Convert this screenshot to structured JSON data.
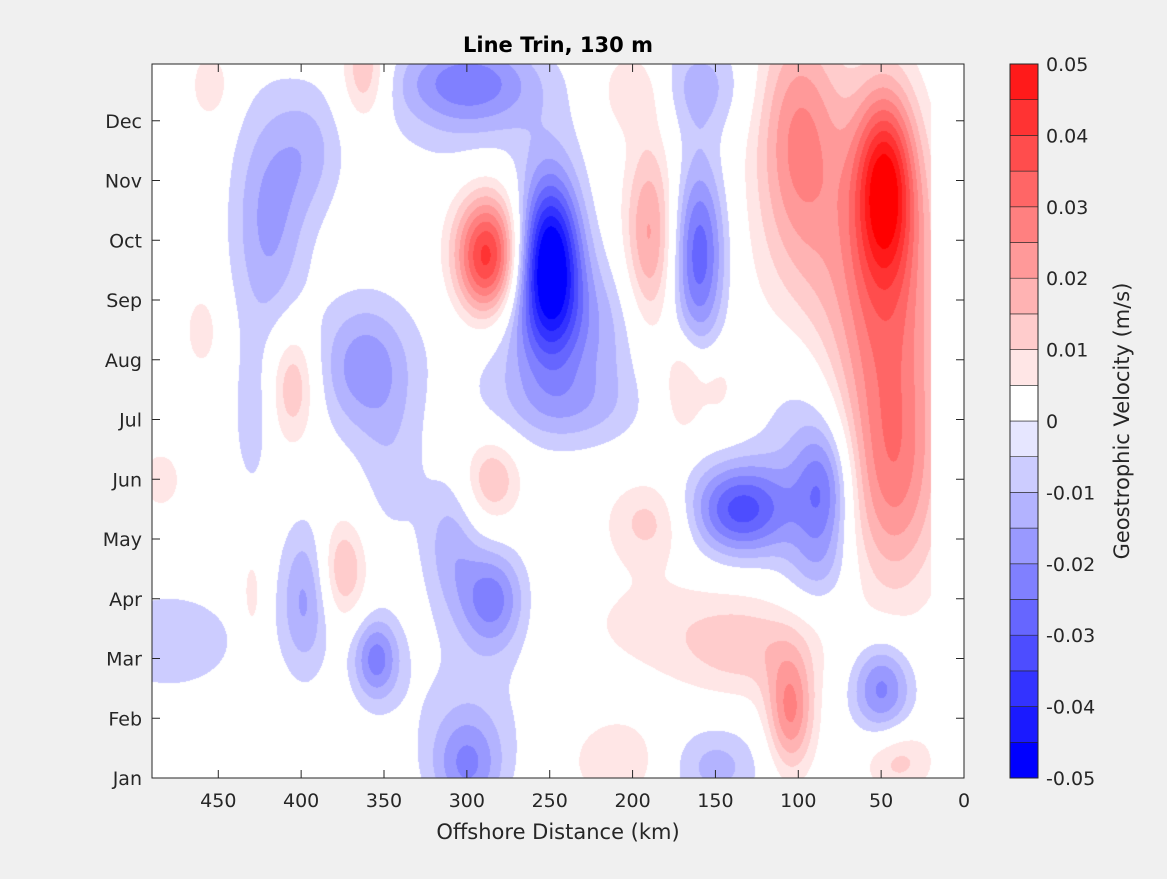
{
  "chart_data": {
    "type": "heatmap",
    "subtype": "filled-contour",
    "title": "Line Trin, 130 m",
    "xlabel": "Offshore Distance (km)",
    "ylabel": "",
    "x_reversed": true,
    "xlim": [
      490,
      0
    ],
    "x_ticks": [
      450,
      400,
      350,
      300,
      250,
      200,
      150,
      100,
      50,
      0
    ],
    "x_tick_labels": [
      "450",
      "400",
      "350",
      "300",
      "250",
      "200",
      "150",
      "100",
      "50",
      "0"
    ],
    "ylim": [
      1,
      12.95
    ],
    "y_ticks": [
      1,
      2,
      3,
      4,
      5,
      6,
      7,
      8,
      9,
      10,
      11,
      12
    ],
    "y_tick_labels": [
      "Jan",
      "Feb",
      "Mar",
      "Apr",
      "May",
      "Jun",
      "Jul",
      "Aug",
      "Sep",
      "Oct",
      "Nov",
      "Dec"
    ],
    "data_x_range": [
      20,
      490
    ],
    "colorbar": {
      "label": "Geostrophic Velocity (m/s)",
      "limits": [
        -0.05,
        0.05
      ],
      "ticks": [
        0.05,
        0.04,
        0.03,
        0.02,
        0.01,
        0,
        -0.01,
        -0.02,
        -0.03,
        -0.04,
        -0.05
      ],
      "tick_labels": [
        "0.05",
        "0.04",
        "0.03",
        "0.02",
        "0.01",
        "0",
        "-0.01",
        "-0.02",
        "-0.03",
        "-0.04",
        "-0.05"
      ],
      "levels": [
        -0.05,
        -0.045,
        -0.04,
        -0.035,
        -0.03,
        -0.025,
        -0.02,
        -0.015,
        -0.01,
        -0.005,
        0,
        0.005,
        0.01,
        0.015,
        0.02,
        0.025,
        0.03,
        0.035,
        0.04,
        0.045,
        0.05
      ],
      "colors": [
        "#0000ff",
        "#1a1aff",
        "#3333ff",
        "#4d4dff",
        "#6666ff",
        "#8080ff",
        "#9999ff",
        "#b3b3ff",
        "#ccccff",
        "#e6e6ff",
        "#ffffff",
        "#ffffff",
        "#ffe6e6",
        "#ffcccc",
        "#ffb3b3",
        "#ff9999",
        "#ff8080",
        "#ff6666",
        "#ff4d4d",
        "#ff3333",
        "#ff1a1a",
        "#ff0000"
      ]
    },
    "features": [
      {
        "x": 288,
        "y": 9.7,
        "peak": 0.045,
        "sx": 14,
        "sy": 0.75
      },
      {
        "x": 250,
        "y": 9.7,
        "peak": -0.05,
        "sx": 13,
        "sy": 1.0
      },
      {
        "x": 244,
        "y": 8.5,
        "peak": -0.016,
        "sx": 38,
        "sy": 0.9
      },
      {
        "x": 240,
        "y": 7.2,
        "peak": -0.01,
        "sx": 30,
        "sy": 0.5
      },
      {
        "x": 190,
        "y": 10.0,
        "peak": 0.022,
        "sx": 11,
        "sy": 1.2
      },
      {
        "x": 160,
        "y": 9.8,
        "peak": -0.028,
        "sx": 11,
        "sy": 1.1
      },
      {
        "x": 48,
        "y": 11.0,
        "peak": 0.04,
        "sx": 13,
        "sy": 1.1
      },
      {
        "x": 44,
        "y": 9.0,
        "peak": 0.022,
        "sx": 22,
        "sy": 1.8
      },
      {
        "x": 42,
        "y": 6.0,
        "peak": 0.022,
        "sx": 20,
        "sy": 1.4
      },
      {
        "x": 100,
        "y": 11.8,
        "peak": 0.022,
        "sx": 18,
        "sy": 1.4
      },
      {
        "x": 80,
        "y": 9.5,
        "peak": 0.012,
        "sx": 30,
        "sy": 2.0
      },
      {
        "x": 135,
        "y": 5.5,
        "peak": -0.032,
        "sx": 22,
        "sy": 0.55
      },
      {
        "x": 85,
        "y": 5.8,
        "peak": -0.022,
        "sx": 12,
        "sy": 0.8
      },
      {
        "x": 100,
        "y": 7.0,
        "peak": -0.01,
        "sx": 20,
        "sy": 1.2
      },
      {
        "x": 50,
        "y": 2.5,
        "peak": -0.022,
        "sx": 13,
        "sy": 0.55
      },
      {
        "x": 105,
        "y": 2.1,
        "peak": 0.025,
        "sx": 10,
        "sy": 0.7
      },
      {
        "x": 130,
        "y": 3.2,
        "peak": 0.012,
        "sx": 30,
        "sy": 0.6
      },
      {
        "x": 190,
        "y": 3.6,
        "peak": 0.006,
        "sx": 40,
        "sy": 0.7
      },
      {
        "x": 190,
        "y": 5.3,
        "peak": 0.012,
        "sx": 18,
        "sy": 0.5
      },
      {
        "x": 210,
        "y": 1.3,
        "peak": 0.01,
        "sx": 20,
        "sy": 0.5
      },
      {
        "x": 40,
        "y": 1.3,
        "peak": 0.012,
        "sx": 15,
        "sy": 0.4
      },
      {
        "x": 150,
        "y": 1.2,
        "peak": -0.012,
        "sx": 20,
        "sy": 0.5
      },
      {
        "x": 300,
        "y": 1.2,
        "peak": -0.018,
        "sx": 15,
        "sy": 0.6
      },
      {
        "x": 300,
        "y": 2.2,
        "peak": -0.006,
        "sx": 30,
        "sy": 1.0
      },
      {
        "x": 285,
        "y": 4.0,
        "peak": -0.022,
        "sx": 14,
        "sy": 0.6
      },
      {
        "x": 310,
        "y": 4.9,
        "peak": -0.012,
        "sx": 12,
        "sy": 0.8
      },
      {
        "x": 355,
        "y": 3.0,
        "peak": -0.022,
        "sx": 10,
        "sy": 0.5
      },
      {
        "x": 375,
        "y": 4.5,
        "peak": 0.016,
        "sx": 10,
        "sy": 0.6
      },
      {
        "x": 398,
        "y": 4.0,
        "peak": -0.016,
        "sx": 11,
        "sy": 0.9
      },
      {
        "x": 405,
        "y": 7.6,
        "peak": 0.016,
        "sx": 10,
        "sy": 0.7
      },
      {
        "x": 362,
        "y": 7.9,
        "peak": -0.018,
        "sx": 20,
        "sy": 0.8
      },
      {
        "x": 345,
        "y": 6.2,
        "peak": -0.007,
        "sx": 15,
        "sy": 1.0
      },
      {
        "x": 362,
        "y": 12.8,
        "peak": 0.016,
        "sx": 10,
        "sy": 0.6
      },
      {
        "x": 300,
        "y": 12.7,
        "peak": -0.02,
        "sx": 30,
        "sy": 0.5
      },
      {
        "x": 295,
        "y": 12.0,
        "peak": -0.007,
        "sx": 40,
        "sy": 0.7
      },
      {
        "x": 420,
        "y": 10.3,
        "peak": -0.016,
        "sx": 16,
        "sy": 1.4
      },
      {
        "x": 395,
        "y": 11.5,
        "peak": -0.01,
        "sx": 15,
        "sy": 0.8
      },
      {
        "x": 160,
        "y": 12.6,
        "peak": -0.012,
        "sx": 20,
        "sy": 0.6
      },
      {
        "x": 200,
        "y": 12.5,
        "peak": 0.01,
        "sx": 15,
        "sy": 0.5
      },
      {
        "x": 455,
        "y": 12.6,
        "peak": 0.01,
        "sx": 8,
        "sy": 0.4
      },
      {
        "x": 460,
        "y": 8.5,
        "peak": 0.008,
        "sx": 8,
        "sy": 0.5
      },
      {
        "x": 480,
        "y": 3.3,
        "peak": -0.01,
        "sx": 30,
        "sy": 0.6
      },
      {
        "x": 485,
        "y": 6.0,
        "peak": 0.008,
        "sx": 10,
        "sy": 0.4
      },
      {
        "x": 430,
        "y": 7.0,
        "peak": -0.008,
        "sx": 8,
        "sy": 0.9
      },
      {
        "x": 285,
        "y": 6.0,
        "peak": 0.015,
        "sx": 12,
        "sy": 0.5
      },
      {
        "x": 430,
        "y": 4.0,
        "peak": 0.008,
        "sx": 5,
        "sy": 0.6
      },
      {
        "x": 150,
        "y": 7.6,
        "peak": 0.008,
        "sx": 10,
        "sy": 0.5
      },
      {
        "x": 170,
        "y": 7.6,
        "peak": 0.012,
        "sx": 8,
        "sy": 0.6
      },
      {
        "x": 90,
        "y": 4.5,
        "peak": -0.008,
        "sx": 15,
        "sy": 0.5
      }
    ]
  }
}
